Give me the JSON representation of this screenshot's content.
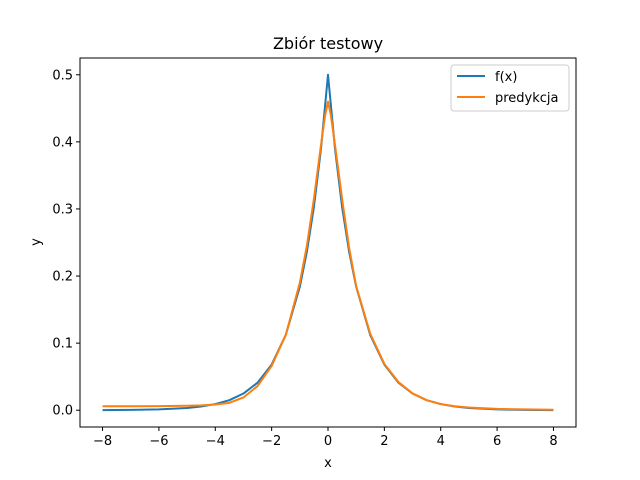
{
  "chart_data": {
    "type": "line",
    "title": "Zbiór testowy",
    "xlabel": "x",
    "ylabel": "y",
    "xlim": [
      -8.8,
      8.8
    ],
    "ylim": [
      -0.025,
      0.525
    ],
    "x_ticks": [
      -8,
      -6,
      -4,
      -2,
      0,
      2,
      4,
      6,
      8
    ],
    "x_tick_labels": [
      "−8",
      "−6",
      "−4",
      "−2",
      "0",
      "2",
      "4",
      "6",
      "8"
    ],
    "y_ticks": [
      0.0,
      0.1,
      0.2,
      0.3,
      0.4,
      0.5
    ],
    "y_tick_labels": [
      "0.0",
      "0.1",
      "0.2",
      "0.3",
      "0.4",
      "0.5"
    ],
    "grid": false,
    "legend_position": "top-right",
    "series": [
      {
        "name": "f(x)",
        "color": "#1f77b4",
        "x": [
          -8,
          -7,
          -6,
          -5,
          -4.5,
          -4,
          -3.5,
          -3,
          -2.5,
          -2,
          -1.5,
          -1,
          -0.75,
          -0.5,
          -0.25,
          0,
          0.25,
          0.5,
          0.75,
          1,
          1.5,
          2,
          2.5,
          3,
          3.5,
          4,
          4.5,
          5,
          6,
          7,
          8
        ],
        "values": [
          0.0002,
          0.0006,
          0.0012,
          0.0034,
          0.0056,
          0.0092,
          0.015,
          0.0249,
          0.041,
          0.068,
          0.112,
          0.184,
          0.236,
          0.303,
          0.389,
          0.5,
          0.389,
          0.303,
          0.236,
          0.184,
          0.112,
          0.068,
          0.041,
          0.0249,
          0.015,
          0.0092,
          0.0056,
          0.0034,
          0.0012,
          0.0006,
          0.0002
        ]
      },
      {
        "name": "predykcja",
        "color": "#ff7f0e",
        "x": [
          -8,
          -7,
          -6,
          -5,
          -4.5,
          -4,
          -3.5,
          -3,
          -2.5,
          -2,
          -1.5,
          -1,
          -0.75,
          -0.5,
          -0.25,
          -0.1,
          0,
          0.1,
          0.25,
          0.5,
          0.75,
          1,
          1.5,
          2,
          2.5,
          3,
          3.5,
          4,
          4.5,
          5,
          6,
          7,
          8
        ],
        "values": [
          0.006,
          0.006,
          0.0062,
          0.0066,
          0.0072,
          0.0085,
          0.011,
          0.019,
          0.036,
          0.066,
          0.112,
          0.19,
          0.245,
          0.315,
          0.395,
          0.44,
          0.46,
          0.44,
          0.395,
          0.315,
          0.242,
          0.185,
          0.114,
          0.069,
          0.042,
          0.025,
          0.015,
          0.009,
          0.006,
          0.004,
          0.002,
          0.0012,
          0.0008
        ]
      }
    ]
  }
}
